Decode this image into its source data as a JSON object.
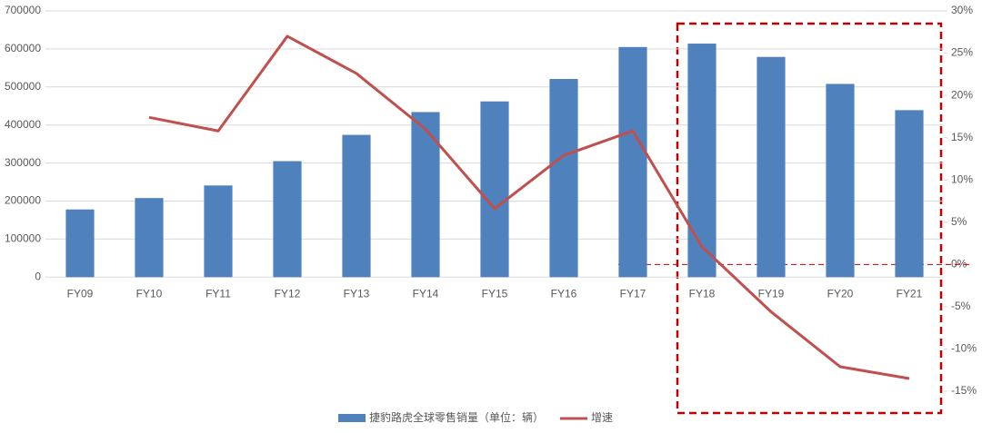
{
  "chart_data": {
    "type": "bar_line",
    "categories": [
      "FY09",
      "FY10",
      "FY11",
      "FY12",
      "FY13",
      "FY14",
      "FY15",
      "FY16",
      "FY17",
      "FY18",
      "FY19",
      "FY20",
      "FY21"
    ],
    "series": [
      {
        "name": "捷豹路虎全球零售销量（单位：辆）",
        "type": "bar",
        "color": "#4f81bd",
        "values": [
          178000,
          208000,
          241000,
          305000,
          374000,
          434000,
          462000,
          521000,
          605000,
          614000,
          579000,
          508000,
          439000
        ]
      },
      {
        "name": "增速",
        "type": "line",
        "axis": "y2",
        "color": "#c0504d",
        "values": [
          null,
          17.4,
          15.8,
          27.0,
          22.6,
          16.0,
          6.6,
          12.9,
          15.8,
          2.1,
          -5.6,
          -12.1,
          -13.5
        ]
      }
    ],
    "ylim": [
      -300000,
      700000
    ],
    "yticks": [
      0,
      100000,
      200000,
      300000,
      400000,
      500000,
      600000,
      700000
    ],
    "y2lim": [
      -15,
      30
    ],
    "y2ticks": [
      {
        "value": -15,
        "label": "-15%"
      },
      {
        "value": -10,
        "label": "-10%"
      },
      {
        "value": -5,
        "label": "-5%"
      },
      {
        "value": 0,
        "label": "0%"
      },
      {
        "value": 5,
        "label": "5%"
      },
      {
        "value": 10,
        "label": "10%"
      },
      {
        "value": 15,
        "label": "15%"
      },
      {
        "value": 20,
        "label": "20%"
      },
      {
        "value": 25,
        "label": "25%"
      },
      {
        "value": 30,
        "label": "30%"
      }
    ],
    "grid": true
  }
}
